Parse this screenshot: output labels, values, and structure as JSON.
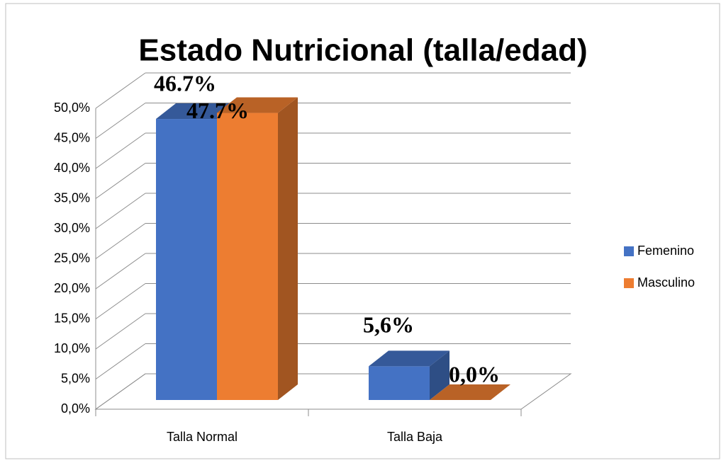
{
  "chart_data": {
    "type": "bar3d",
    "title": "Estado Nutricional (talla/edad)",
    "categories": [
      "Talla Normal",
      "Talla Baja"
    ],
    "series": [
      {
        "name": "Femenino",
        "color": "#4472c4",
        "values": [
          46.7,
          5.6
        ],
        "value_labels": [
          "46.7%",
          "5,6%"
        ]
      },
      {
        "name": "Masculino",
        "color": "#ed7d31",
        "values": [
          47.7,
          0.0
        ],
        "value_labels": [
          "47.7%",
          "0,0%"
        ]
      }
    ],
    "ylim": [
      0,
      50
    ],
    "yticks": [
      {
        "value": 0,
        "label": "0,0%"
      },
      {
        "value": 5,
        "label": "5,0%"
      },
      {
        "value": 10,
        "label": "10,0%"
      },
      {
        "value": 15,
        "label": "15,0%"
      },
      {
        "value": 20,
        "label": "20,0%"
      },
      {
        "value": 25,
        "label": "25,0%"
      },
      {
        "value": 30,
        "label": "30,0%"
      },
      {
        "value": 35,
        "label": "35,0%"
      },
      {
        "value": 40,
        "label": "40,0%"
      },
      {
        "value": 45,
        "label": "45,0%"
      },
      {
        "value": 50,
        "label": "50,0%"
      }
    ],
    "grid": true,
    "legend": "right"
  }
}
